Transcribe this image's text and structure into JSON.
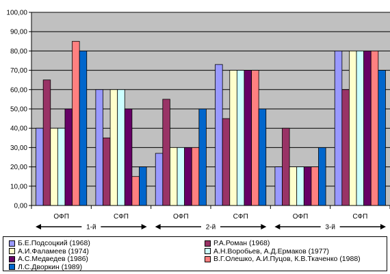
{
  "chart_data": {
    "type": "bar",
    "categories": [
      "ОФП",
      "СФП",
      "ОФП",
      "СФП",
      "ОФП",
      "СФП"
    ],
    "groups": [
      "1-й",
      "2-й",
      "3-й"
    ],
    "ylim": [
      0,
      100
    ],
    "yticks": [
      "0,00",
      "10,00",
      "20,00",
      "30,00",
      "40,00",
      "50,00",
      "60,00",
      "70,00",
      "80,00",
      "90,00",
      "100,00"
    ],
    "grid": true,
    "plot_background": "#c0c0c0",
    "legend_position": "bottom",
    "series": [
      {
        "name": "Б.Е.Подсоцкий (1968)",
        "color": "#9999ff",
        "values": [
          40,
          60,
          27,
          73,
          20,
          80
        ]
      },
      {
        "name": "Р.А.Роман (1968)",
        "color": "#993366",
        "values": [
          65,
          35,
          55,
          45,
          40,
          60
        ]
      },
      {
        "name": "А.И.Фаламеев (1974)",
        "color": "#ffffcc",
        "values": [
          40,
          60,
          30,
          70,
          20,
          80
        ]
      },
      {
        "name": "А.Н.Воробьев, А.Д.Ермаков (1977)",
        "color": "#ccffff",
        "values": [
          40,
          60,
          30,
          70,
          20,
          80
        ]
      },
      {
        "name": "А.С.Медведев (1986)",
        "color": "#660066",
        "values": [
          50,
          50,
          30,
          70,
          20,
          80
        ]
      },
      {
        "name": "В.Г.Олешко, А.И.Пуцов, К.В.Ткаченко (1988)",
        "color": "#ff8080",
        "values": [
          85,
          15,
          30,
          70,
          20,
          80
        ]
      },
      {
        "name": "Л.С.Дворкин (1989)",
        "color": "#0066cc",
        "values": [
          80,
          20,
          50,
          50,
          30,
          70
        ]
      }
    ]
  }
}
